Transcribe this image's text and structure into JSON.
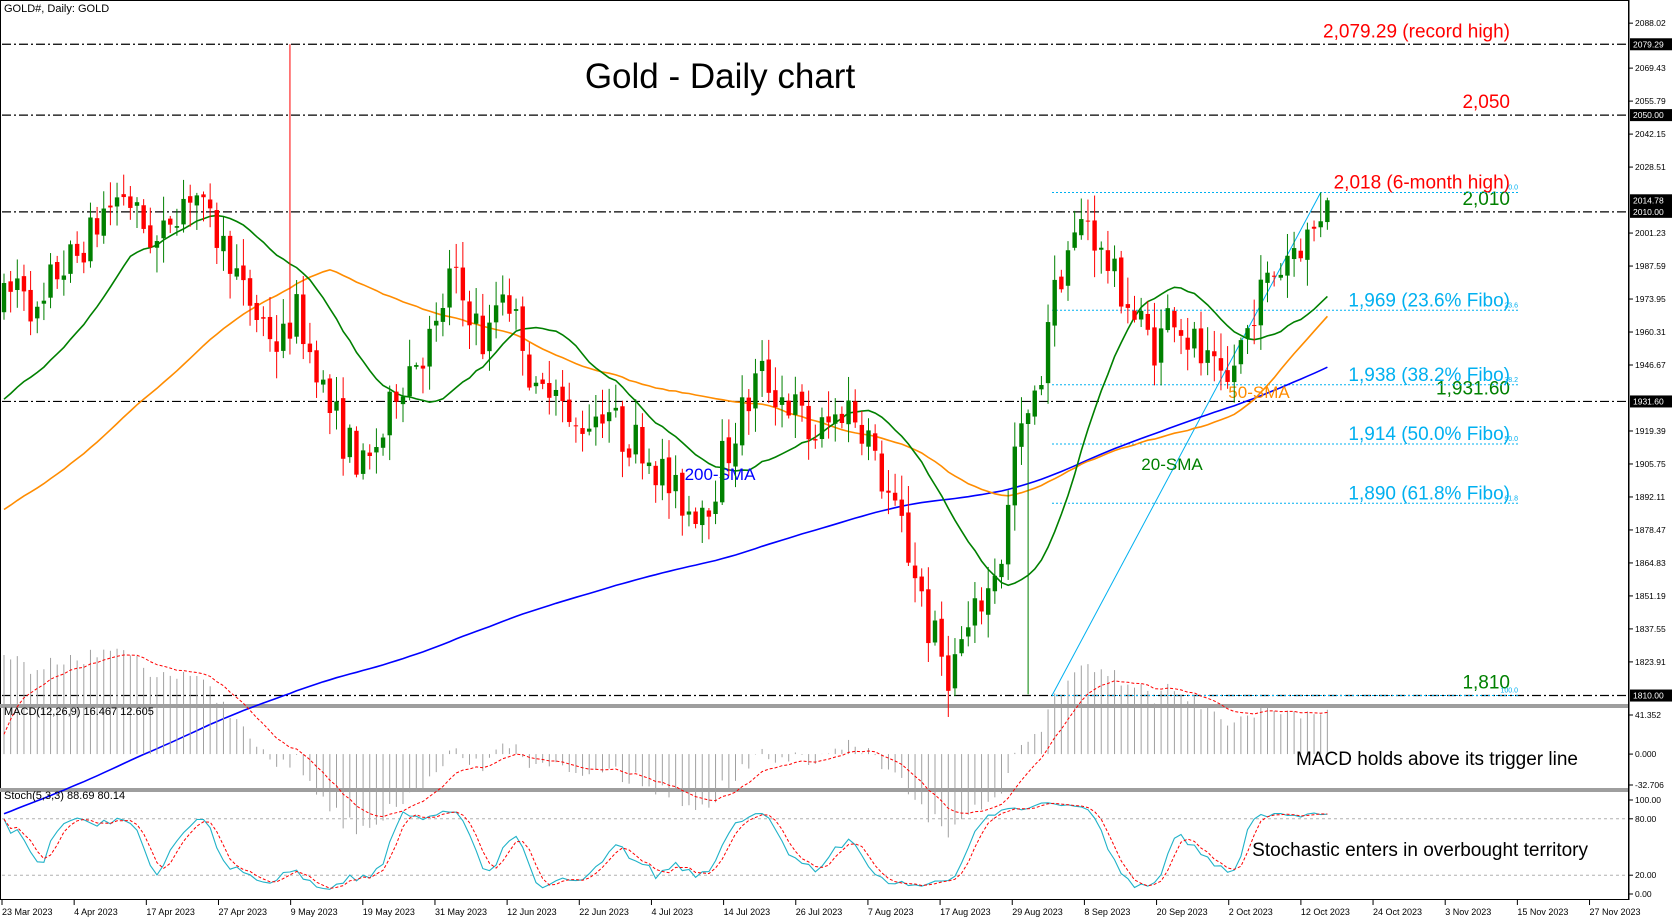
{
  "window": {
    "symbol_info": "GOLD#, Daily:  GOLD"
  },
  "chart_data": [
    {
      "type": "candlestick",
      "title": "Gold - Daily chart",
      "ylim": [
        1806.5,
        2088.5
      ],
      "y_ticks": [
        "2088.02",
        "2069.43",
        "2055.79",
        "2042.15",
        "2028.51",
        "2001.23",
        "1987.59",
        "1973.95",
        "1960.31",
        "1946.67",
        "1919.39",
        "1905.75",
        "1892.11",
        "1878.47",
        "1864.83",
        "1851.19",
        "1837.55",
        "1823.91"
      ],
      "price_labels": [
        "2079.29",
        "2050.00",
        "2014.78",
        "2010.00",
        "1931.60",
        "1810.00"
      ],
      "x_dates": [
        "23 Mar 2023",
        "4 Apr 2023",
        "17 Apr 2023",
        "27 Apr 2023",
        "9 May 2023",
        "19 May 2023",
        "31 May 2023",
        "12 Jun 2023",
        "22 Jun 2023",
        "4 Jul 2023",
        "14 Jul 2023",
        "26 Jul 2023",
        "7 Aug 2023",
        "17 Aug 2023",
        "29 Aug 2023",
        "8 Sep 2023",
        "20 Sep 2023",
        "2 Oct 2023",
        "12 Oct 2023",
        "24 Oct 2023",
        "3 Nov 2023",
        "15 Nov 2023",
        "27 Nov 2023"
      ],
      "close_path": [
        1973,
        1983,
        1965,
        1985,
        1990,
        2000,
        2012,
        2018,
        2005,
        1996,
        2013,
        2019,
        2003,
        1994,
        1975,
        1965,
        1955,
        1968,
        1950,
        1928,
        1914,
        1903,
        1918,
        1940,
        1950,
        1958,
        1983,
        1971,
        1955,
        1980,
        1962,
        1932,
        1944,
        1918,
        1925,
        1930,
        1917,
        1915,
        1905,
        1893,
        1887,
        1892,
        1910,
        1927,
        1943,
        1935,
        1929,
        1917,
        1922,
        1930,
        1922,
        1900,
        1883,
        1862,
        1834,
        1820,
        1835,
        1850,
        1868,
        1915,
        1930,
        1975,
        1995,
        2008,
        1990,
        1978,
        1964,
        1955,
        1970,
        1957,
        1946,
        1935,
        1955,
        1975,
        1985,
        1996,
        2000,
        2015
      ],
      "levels": [
        {
          "label": "2,079.29 (record high)",
          "value": 2079.29,
          "color": "#ff0000"
        },
        {
          "label": "2,050",
          "value": 2050.0,
          "color": "#ff0000"
        },
        {
          "label": "2,010",
          "value": 2010.0,
          "color": "#008000"
        },
        {
          "label": "1,931.60",
          "value": 1931.6,
          "color": "#008000"
        },
        {
          "label": "1,810",
          "value": 1810.0,
          "color": "#008000"
        }
      ],
      "fibo": [
        {
          "label": "2,018 (6-month high)",
          "small": "0.0",
          "value": 2018.0,
          "color": "#ff0000"
        },
        {
          "label": "1,969 (23.6% Fibo)",
          "small": "23.6",
          "value": 1969.3,
          "color": "#00b0f0"
        },
        {
          "label": "1,938 (38.2% Fibo)",
          "small": "38.2",
          "value": 1938.5,
          "color": "#00b0f0"
        },
        {
          "label": "1,914 (50.0% Fibo)",
          "small": "50.0",
          "value": 1914.0,
          "color": "#00b0f0"
        },
        {
          "label": "1,890 (61.8% Fibo)",
          "small": "61.8",
          "value": 1889.5,
          "color": "#00b0f0"
        },
        {
          "label": "",
          "small": "100.0",
          "value": 1810.0,
          "color": "#00b0f0"
        }
      ],
      "sma_labels": [
        {
          "label": "200-SMA",
          "color": "#0000ff"
        },
        {
          "label": "50-SMA",
          "color": "#ff8c00"
        },
        {
          "label": "20-SMA",
          "color": "#008000"
        }
      ],
      "colors": {
        "up": "#008000",
        "down": "#ff0000",
        "sma20": "#008000",
        "sma50": "#ff8c00",
        "sma200": "#0000ff",
        "fibo": "#00b0f0"
      }
    },
    {
      "type": "histogram",
      "title": "MACD(12,26,9) 16.467 12.605",
      "y_ticks": [
        "41.352",
        "0.000",
        "-32.706"
      ],
      "annotation": "MACD holds above its trigger line"
    },
    {
      "type": "line",
      "title": "Stoch(5,3,3) 88.69 80.14",
      "y_ticks": [
        "100.00",
        "80.00",
        "20.00",
        "0.00"
      ],
      "annotation": "Stochastic enters in overbought territory"
    }
  ]
}
